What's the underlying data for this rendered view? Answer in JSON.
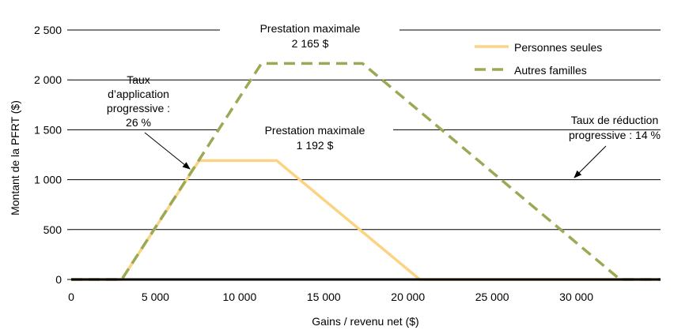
{
  "chart_data": {
    "type": "line",
    "xlabel": "Gains / revenu net ($)",
    "ylabel": "Montant de la PFRT ($)",
    "xlim": [
      0,
      35000
    ],
    "ylim": [
      0,
      2500
    ],
    "x_ticks": [
      0,
      5000,
      10000,
      15000,
      20000,
      25000,
      30000
    ],
    "x_tick_labels": [
      "0",
      "5 000",
      "10 000",
      "15 000",
      "20 000",
      "25 000",
      "30 000"
    ],
    "y_ticks": [
      0,
      500,
      1000,
      1500,
      2000,
      2500
    ],
    "y_tick_labels": [
      "0",
      "500",
      "1 000",
      "1 500",
      "2 000",
      "2 500"
    ],
    "grid": "horizontal",
    "legend": "top-right",
    "series": [
      {
        "name": "Personnes seules",
        "style": "solid",
        "color": "#FCD383",
        "x": [
          0,
          3000,
          7600,
          12200,
          20700,
          35000
        ],
        "y": [
          0,
          0,
          1192,
          1192,
          0,
          0
        ]
      },
      {
        "name": "Autres familles",
        "style": "dashed",
        "color": "#9BA957",
        "x": [
          0,
          3000,
          11300,
          17300,
          32600,
          35000
        ],
        "y": [
          0,
          0,
          2165,
          2165,
          0,
          0
        ]
      }
    ],
    "annotations": {
      "max_families": {
        "lines": [
          "Prestation maximale",
          "2 165 $"
        ]
      },
      "max_singles": {
        "lines": [
          "Prestation maximale",
          "1 192 $"
        ]
      },
      "phase_in": {
        "lines": [
          "Taux",
          "d’application",
          "progressive :",
          "26 %"
        ]
      },
      "phase_out": {
        "lines": [
          "Taux de réduction",
          "progressive : 14 %"
        ]
      }
    }
  }
}
